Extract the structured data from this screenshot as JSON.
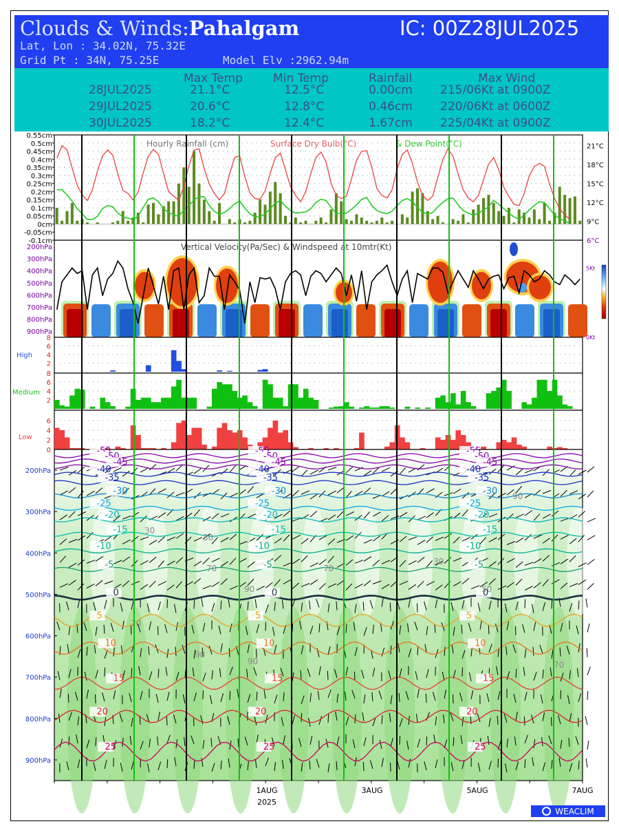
{
  "header": {
    "title": "Clouds & Winds:",
    "station": "Pahalgam",
    "ic": "IC: 00Z28JUL2025",
    "latlon": "Lat, Lon : 34.02N, 75.32E",
    "gridpt": "Grid Pt   : 34N, 75.25E",
    "elev": "Model Elv :2962.94m"
  },
  "summary": {
    "headers": [
      "Max Temp",
      "Min Temp",
      "Rainfall",
      "Max Wind"
    ],
    "rows": [
      {
        "date": "28JUL2025",
        "max": "21.1°C",
        "min": "12.5°C",
        "rain": "0.00cm",
        "wind": "215/06Kt at 0900Z"
      },
      {
        "date": "29JUL2025",
        "max": "20.6°C",
        "min": "12.8°C",
        "rain": "0.46cm",
        "wind": "220/06Kt at 0600Z"
      },
      {
        "date": "30JUL2025",
        "max": "18.2°C",
        "min": "12.4°C",
        "rain": "1.67cm",
        "wind": "225/04Kt at 0900Z"
      }
    ]
  },
  "colors": {
    "temp": "#e84040",
    "dew": "#22cc22",
    "rain": "#5a8a20",
    "high": "#2050e0",
    "medium": "#10c010",
    "low": "#f04040",
    "green_grid": "#10c010",
    "vv_label": "#7a00a0",
    "press_label": "#1a3ad0"
  },
  "chart_data": [
    {
      "type": "bar",
      "title": "Hourly Rainfall (cm)",
      "series_labels": [
        "Surface Dry Bulb(°C)",
        "& Dew Point(°C)"
      ],
      "y_ticks": [
        "0.55cm",
        "0.5cm",
        "0.45cm",
        "0.4cm",
        "0.35cm",
        "0.3cm",
        "0.25cm",
        "0.2cm",
        "0.15cm",
        "0.1cm",
        "0.05cm",
        "0cm",
        "-0.05cm",
        "-0.1cm"
      ],
      "y_right_ticks": [
        "21°C",
        "18°C",
        "15°C",
        "12°C",
        "9°C",
        "6°C"
      ],
      "ylim": [
        -0.1,
        0.55
      ],
      "temp_lim": [
        6,
        22.7
      ],
      "rain": [
        0.1,
        0.02,
        0.08,
        0.13,
        0.02,
        0.03,
        0.01,
        0.0,
        0.01,
        0.0,
        0.0,
        0.01,
        0.02,
        0.08,
        0.02,
        0.04,
        0.07,
        0.01,
        0.12,
        0.13,
        0.06,
        0.11,
        0.14,
        0.14,
        0.25,
        0.35,
        0.23,
        0.45,
        0.25,
        0.15,
        0.08,
        0.02,
        0.13,
        0.0,
        0.03,
        0.01,
        0.03,
        0.01,
        0.02,
        0.07,
        0.15,
        0.12,
        0.2,
        0.26,
        0.19,
        0.05,
        0.01,
        0.04,
        0.01,
        0.02,
        0.0,
        0.02,
        0.04,
        0.01,
        0.09,
        0.19,
        0.14,
        0.03,
        0.02,
        0.06,
        0.04,
        0.02,
        0.01,
        0.02,
        0.04,
        0.01,
        0.02,
        0.0,
        0.06,
        0.04,
        0.2,
        0.22,
        0.19,
        0.08,
        0.03,
        0.05,
        0.01,
        0.0,
        0.03,
        0.02,
        0.06,
        0.01,
        0.09,
        0.12,
        0.16,
        0.18,
        0.13,
        0.08,
        0.05,
        0.1,
        0.01,
        0.09,
        0.07,
        0.04,
        0.09,
        0.03,
        0.13,
        0.02,
        0.07,
        0.23,
        0.18,
        0.16,
        0.17,
        0.02
      ],
      "temp": [
        19,
        21,
        20.3,
        17.5,
        14.7,
        13.2,
        12.3,
        14,
        17,
        19.4,
        20.3,
        19.5,
        16.5,
        13.9,
        13.4,
        12.4,
        13.6,
        16.7,
        19.3,
        20.4,
        19.6,
        16.6,
        13.7,
        13,
        12.3,
        14.5,
        17.8,
        20.3,
        20.5,
        17.4,
        14.9,
        13.4,
        12.4,
        13.4,
        16.5,
        19.1,
        19.4,
        16.1,
        13.5,
        12.6,
        12.5,
        13.8,
        16.6,
        19.1,
        19.8,
        17.2,
        14.5,
        13.1,
        12.1,
        13.7,
        16.6,
        19.1,
        20,
        18.4,
        15,
        13.1,
        12.6,
        13,
        15.7,
        18.7,
        20.1,
        20.2,
        17.6,
        14.2,
        13.1,
        12.7,
        14,
        17.3,
        19.6,
        20.3,
        18.2,
        15.2,
        13.1,
        12.3,
        13,
        16,
        18.8,
        20.5,
        19.3,
        16.5,
        14,
        12.7,
        12.1,
        13.1,
        15.6,
        18.1,
        19.1,
        17.2,
        14.4,
        12.9,
        11.7,
        11.5,
        13.4,
        16.2,
        17.7,
        18.2,
        17.7,
        14.9,
        12.6,
        11,
        10,
        9.3
      ],
      "dew": [
        14,
        14,
        13.2,
        12.2,
        11,
        10.2,
        9.3,
        9.3,
        9.8,
        11,
        11.5,
        11.3,
        10.3,
        9.7,
        9.5,
        9.3,
        9.8,
        11.2,
        12.5,
        12.7,
        12.1,
        11,
        10.4,
        10,
        9.8,
        10.8,
        11.5,
        12.4,
        12.9,
        12.9,
        11.5,
        10.6,
        10.1,
        10.4,
        11,
        11.8,
        12.2,
        11.1,
        10.2,
        9.7,
        9.7,
        10.2,
        11,
        11.9,
        12.3,
        11.4,
        10.7,
        10.3,
        10.4,
        10.5,
        11,
        12,
        12.5,
        12.3,
        11.2,
        10.3,
        10.2,
        10.3,
        10.9,
        11.6,
        12.5,
        12.8,
        11.5,
        10.7,
        10.4,
        10.2,
        10.6,
        11.5,
        12.3,
        12.6,
        12.1,
        11.2,
        10.4,
        10.2,
        10.4,
        11.3,
        12,
        12.6,
        12.7,
        11.6,
        10.7,
        10.3,
        10,
        10.3,
        10.8,
        11.3,
        12.3,
        11.7,
        11,
        10.3,
        9.7,
        9.3,
        10,
        10.8,
        11.5,
        12.1,
        12,
        11,
        10,
        9.4,
        9.1,
        8.6
      ]
    },
    {
      "type": "heatmap",
      "title": "Vertical Velocity(Pa/Sec) & Windspeed at 10mtr(Kt)",
      "y_ticks": [
        "200hPa",
        "300hPa",
        "400hPa",
        "500hPa",
        "600hPa",
        "700hPa",
        "800hPa",
        "900hPa"
      ],
      "y_right_ticks": [
        "5Kt",
        "0Kt"
      ],
      "wind_lim": [
        0,
        7
      ],
      "wind": [
        2,
        4,
        4.5,
        5,
        4.6,
        4.8,
        2,
        4.5,
        5,
        3,
        4.2,
        4.6,
        5.5,
        5,
        3.5,
        2.5,
        1,
        3,
        5,
        3.7,
        2.4,
        4.4,
        2,
        4.8,
        5,
        2,
        4.5,
        5,
        2.5,
        3,
        5,
        4.4,
        4.4,
        2,
        4.5,
        4,
        3.4,
        1,
        4,
        2.5,
        4.3,
        4.2,
        4.3,
        3.5,
        2,
        4,
        4.6,
        4.8,
        4.5,
        3,
        4.4,
        4.8,
        4.6,
        4,
        4.5,
        5,
        4.6,
        3,
        4.5,
        2.6,
        4.8,
        2,
        4,
        4.5,
        4.8,
        5.2,
        4,
        3,
        4.2,
        4.8,
        2.5,
        4.6,
        4.4,
        4.2,
        5,
        5,
        4.7,
        3.2,
        4,
        4.8,
        4.2,
        3.6,
        4.8,
        4.2,
        3.5,
        4.2,
        4.4,
        4.5,
        3.5,
        4.3,
        4.4,
        3.2,
        4.8,
        4.5,
        4,
        4.2,
        4.8,
        4.5,
        4,
        3.8,
        4.5,
        4.2,
        3.8,
        4.2
      ]
    },
    {
      "type": "bar",
      "ylabel": "High",
      "y_ticks": [
        "8",
        "6",
        "4",
        "2"
      ],
      "ylim": [
        0,
        8
      ],
      "values": [
        0,
        0,
        0,
        0,
        0,
        0,
        0,
        0,
        0,
        0,
        0,
        0.3,
        0,
        0,
        0,
        0,
        0,
        0,
        1.5,
        0,
        0,
        0,
        0,
        5,
        2.5,
        0.6,
        0,
        0,
        0,
        0,
        0,
        0,
        0.3,
        0,
        0.2,
        0,
        0,
        0,
        0,
        0,
        0.4,
        0.6,
        0,
        0,
        0,
        0,
        0,
        0,
        0,
        0,
        0,
        0,
        0,
        0,
        0,
        0,
        0,
        0,
        0,
        0,
        0,
        0,
        0,
        0,
        0,
        0,
        0,
        0,
        0,
        0,
        0,
        0,
        0,
        0,
        0,
        0,
        0,
        0,
        0,
        0,
        0,
        0,
        0,
        0,
        0,
        0,
        0,
        0,
        0,
        0,
        0,
        0,
        0,
        0,
        0,
        0,
        0,
        0,
        0,
        0,
        0,
        0
      ]
    },
    {
      "type": "bar",
      "ylabel": "Medium",
      "y_ticks": [
        "8",
        "6",
        "4",
        "2"
      ],
      "ylim": [
        0,
        8
      ],
      "values": [
        2,
        0.8,
        0.5,
        3,
        4.5,
        4.3,
        0,
        0.5,
        0,
        2.5,
        1.5,
        0.6,
        0,
        0,
        0.5,
        4.5,
        2,
        2.5,
        2.5,
        1.5,
        1.5,
        2.5,
        2.5,
        5,
        6.5,
        2.5,
        2.5,
        2.5,
        0,
        0,
        0.5,
        4.5,
        6,
        5.5,
        5.5,
        4,
        2.5,
        3,
        1.5,
        0.6,
        0,
        6.5,
        5.5,
        2.5,
        2.5,
        0.6,
        5.5,
        5.5,
        2.5,
        4.5,
        2.5,
        2,
        0,
        0,
        0.3,
        0.5,
        0.6,
        1.5,
        0.5,
        0,
        0.3,
        0.6,
        0.3,
        0.3,
        0.6,
        0.6,
        0.3,
        0,
        0,
        0.5,
        0,
        0.3,
        0,
        0.3,
        0,
        2.5,
        3,
        1.5,
        3.5,
        1,
        4,
        1.5,
        0.6,
        0,
        0,
        3.5,
        4,
        4.8,
        6.5,
        4,
        0,
        0,
        1.5,
        1,
        2.5,
        6.5,
        6.5,
        4,
        6.5,
        3,
        1,
        0.6,
        0,
        0,
        0
      ]
    },
    {
      "type": "bar",
      "ylabel": "Low",
      "y_ticks": [
        "6",
        "4",
        "2",
        "0"
      ],
      "ylim": [
        0,
        8
      ],
      "values": [
        4.5,
        4,
        2.5,
        0.3,
        0.3,
        0.3,
        0,
        0.3,
        0,
        0.3,
        0.3,
        0,
        0.6,
        0.3,
        0,
        5,
        3,
        0.3,
        0.3,
        0.3,
        0,
        0.3,
        0,
        1.5,
        5.5,
        6,
        3,
        4.5,
        4.5,
        1,
        0,
        0.6,
        4.5,
        5.5,
        4,
        3.5,
        4,
        2.5,
        1,
        0,
        1.5,
        2.5,
        4.5,
        6,
        3.5,
        4,
        1.5,
        0.5,
        0,
        0,
        0.3,
        0,
        0,
        0.3,
        0,
        0.3,
        0,
        0,
        0,
        0.3,
        3.5,
        0,
        0,
        0,
        0,
        0.6,
        1.5,
        5,
        2.5,
        1.5,
        0,
        0,
        0.3,
        0,
        0,
        2.5,
        2,
        3,
        2,
        4,
        3,
        1.5,
        0,
        0,
        0.6,
        0,
        0,
        1.5,
        2,
        1.5,
        2.5,
        1,
        0.6,
        0,
        0,
        0,
        0,
        0.6,
        0.3,
        0.5,
        0.3,
        0,
        0,
        0
      ]
    },
    {
      "type": "heatmap",
      "y_ticks": [
        "200hPa",
        "300hPa",
        "400hPa",
        "500hPa",
        "600hPa",
        "700hPa",
        "800hPa",
        "900hPa"
      ],
      "x_ticks": [
        "1AUG",
        "3AUG",
        "5AUG",
        "7AUG"
      ],
      "x_year": "2025",
      "isotherms": [
        {
          "label": "-55",
          "level": 165,
          "color": "#8a00b0"
        },
        {
          "label": "-50",
          "level": 178,
          "color": "#8a00b0"
        },
        {
          "label": "-45",
          "level": 192,
          "color": "#8a00b0"
        },
        {
          "label": "-40",
          "level": 210,
          "color": "#1530c0"
        },
        {
          "label": "-35",
          "level": 230,
          "color": "#1530c0"
        },
        {
          "label": "-30",
          "level": 262,
          "color": "#0a8ad8"
        },
        {
          "label": "-25",
          "level": 292,
          "color": "#00aaee"
        },
        {
          "label": "-20",
          "level": 320,
          "color": "#00b8c0"
        },
        {
          "label": "-15",
          "level": 355,
          "color": "#00bfa8"
        },
        {
          "label": "-10",
          "level": 395,
          "color": "#00b090"
        },
        {
          "label": "-5",
          "level": 440,
          "color": "#10a070"
        },
        {
          "label": "0",
          "level": 508,
          "color": "#1a3040"
        },
        {
          "label": "5",
          "level": 563,
          "color": "#e8a020"
        },
        {
          "label": "10",
          "level": 630,
          "color": "#f07020"
        },
        {
          "label": "15",
          "level": 715,
          "color": "#e84030"
        },
        {
          "label": "20",
          "level": 795,
          "color": "#e02030"
        },
        {
          "label": "25",
          "level": 880,
          "color": "#d00060"
        }
      ],
      "rh_labels": [
        "30",
        "50",
        "70",
        "90"
      ]
    }
  ],
  "footer": {
    "logo": "WEACLIM"
  }
}
